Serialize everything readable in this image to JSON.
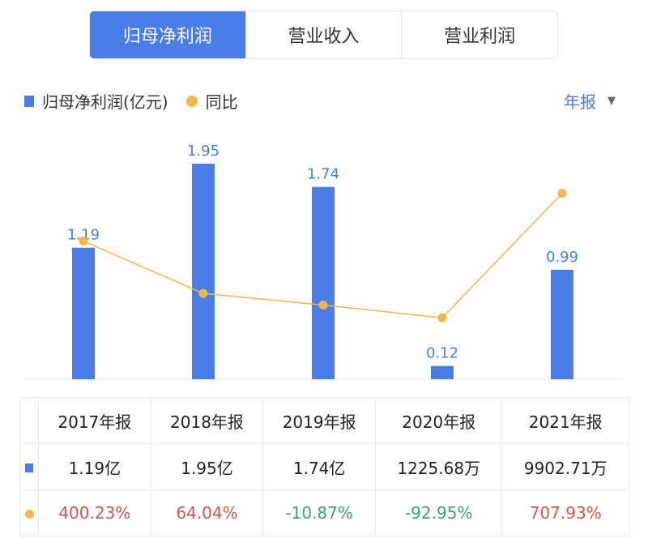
{
  "tabs": [
    {
      "label": "归母净利润",
      "active": true
    },
    {
      "label": "营业收入",
      "active": false
    },
    {
      "label": "营业利润",
      "active": false
    }
  ],
  "legend": {
    "bar": "归母净利润(亿元)",
    "line": "同比"
  },
  "period": {
    "label": "年报"
  },
  "colors": {
    "bar": "#4a7de8",
    "line": "#f2b84b",
    "positive": "#d9534f",
    "negative": "#3fa36c"
  },
  "chart_data": {
    "type": "bar+line",
    "categories": [
      "2017年报",
      "2018年报",
      "2019年报",
      "2020年报",
      "2021年报"
    ],
    "series": [
      {
        "name": "归母净利润(亿元)",
        "type": "bar",
        "values": [
          1.19,
          1.95,
          1.74,
          0.12,
          0.99
        ],
        "labels": [
          "1.19",
          "1.95",
          "1.74",
          "0.12",
          "0.99"
        ]
      },
      {
        "name": "同比",
        "type": "line",
        "values": [
          400.23,
          64.04,
          -10.87,
          -92.95,
          707.93
        ]
      }
    ]
  },
  "table": {
    "headers": [
      "2017年报",
      "2018年报",
      "2019年报",
      "2020年报",
      "2021年报"
    ],
    "values": [
      "1.19亿",
      "1.95亿",
      "1.74亿",
      "1225.68万",
      "9902.71万"
    ],
    "yoy": [
      "400.23%",
      "64.04%",
      "-10.87%",
      "-92.95%",
      "707.93%"
    ]
  }
}
